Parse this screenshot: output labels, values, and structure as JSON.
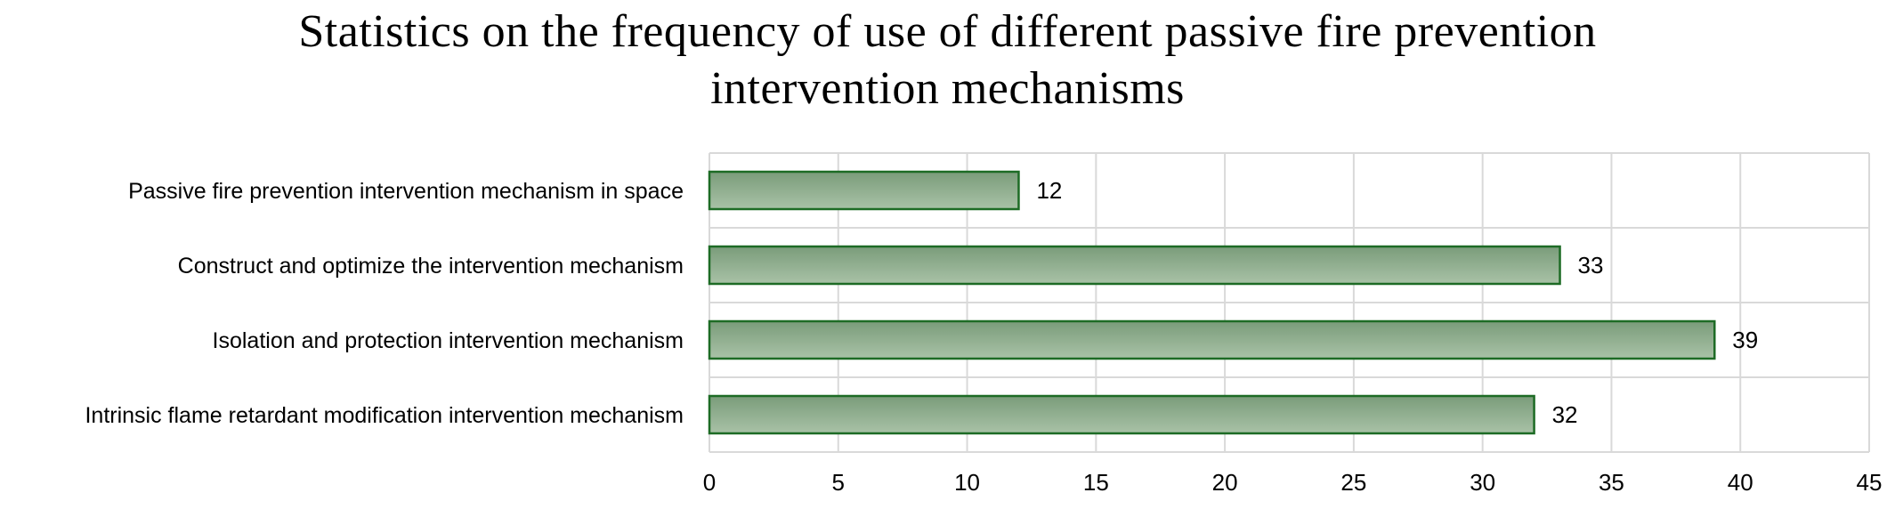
{
  "chart_data": {
    "type": "bar",
    "orientation": "horizontal",
    "title_lines": [
      "Statistics on the frequency of use of different passive fire prevention",
      "intervention mechanisms"
    ],
    "categories": [
      "Passive fire prevention intervention mechanism in space",
      "Construct and optimize the intervention mechanism",
      "Isolation and protection intervention mechanism",
      "Intrinsic flame retardant modification intervention mechanism"
    ],
    "values": [
      12,
      33,
      39,
      32
    ],
    "xlim": [
      0,
      45
    ],
    "x_ticks": [
      0,
      5,
      10,
      15,
      20,
      25,
      30,
      35,
      40,
      45
    ],
    "grid": true,
    "legend": "none",
    "data_labels": true,
    "bar_fill_top": "#7a9c7a",
    "bar_fill_bottom": "#a9c2a7",
    "bar_stroke": "#1d6b25",
    "grid_color": "#d9d9d9"
  }
}
